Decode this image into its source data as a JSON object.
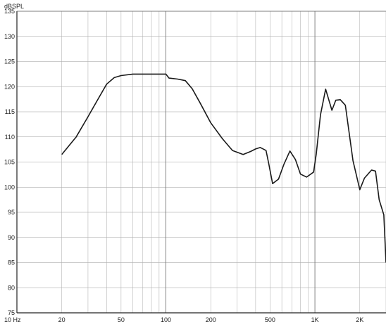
{
  "chart_data": {
    "type": "line",
    "title": "",
    "xlabel": "",
    "ylabel": "dBSPL",
    "x_scale": "log",
    "xlim": [
      10,
      3000
    ],
    "ylim": [
      75,
      135
    ],
    "grid": true,
    "x_ticks": [
      {
        "value": 10,
        "label": "10 Hz"
      },
      {
        "value": 20,
        "label": "20"
      },
      {
        "value": 50,
        "label": "50"
      },
      {
        "value": 100,
        "label": "100"
      },
      {
        "value": 200,
        "label": "200"
      },
      {
        "value": 500,
        "label": "500"
      },
      {
        "value": 1000,
        "label": "1K"
      },
      {
        "value": 2000,
        "label": "2K"
      }
    ],
    "y_ticks": [
      135,
      130,
      125,
      120,
      115,
      110,
      105,
      100,
      95,
      90,
      85,
      80,
      75
    ],
    "series": [
      {
        "x": [
          20,
          25,
          30,
          35,
          40,
          45,
          50,
          60,
          70,
          80,
          90,
          100,
          105,
          120,
          135,
          150,
          170,
          200,
          240,
          280,
          330,
          370,
          400,
          430,
          470,
          490,
          520,
          570,
          620,
          680,
          740,
          800,
          880,
          980,
          1020,
          1090,
          1180,
          1300,
          1380,
          1480,
          1600,
          1800,
          2000,
          2150,
          2400,
          2550,
          2700,
          2900,
          3000
        ],
        "y": [
          106.5,
          110,
          114,
          117.5,
          120.5,
          121.8,
          122.2,
          122.5,
          122.5,
          122.5,
          122.5,
          122.5,
          121.7,
          121.5,
          121.2,
          119.6,
          116.7,
          112.8,
          109.6,
          107.3,
          106.5,
          107.1,
          107.6,
          107.9,
          107.3,
          104.7,
          100.7,
          101.6,
          104.6,
          107.2,
          105.5,
          102.6,
          102.0,
          103.0,
          106.5,
          114.4,
          119.5,
          115.3,
          117.3,
          117.4,
          116.3,
          105.3,
          99.5,
          101.8,
          103.4,
          103.2,
          97.5,
          94.5,
          85.0
        ]
      }
    ]
  }
}
